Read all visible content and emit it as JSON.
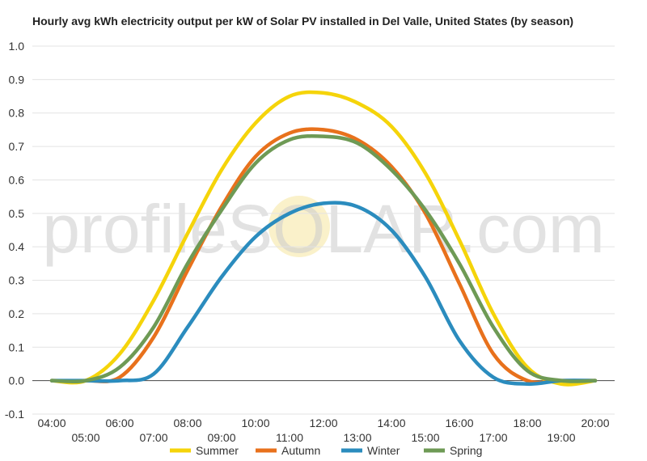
{
  "chart_data": {
    "type": "line",
    "title": "Hourly avg kWh electricity output per kW of Solar PV installed in Del Valle, United States (by season)",
    "xlabel": "",
    "ylabel": "",
    "ylim": [
      -0.1,
      1.0
    ],
    "yticks": [
      "-0.1",
      "0.0",
      "0.1",
      "0.2",
      "0.3",
      "0.4",
      "0.5",
      "0.6",
      "0.7",
      "0.8",
      "0.9",
      "1.0"
    ],
    "categories": [
      "04:00",
      "05:00",
      "06:00",
      "07:00",
      "08:00",
      "09:00",
      "10:00",
      "11:00",
      "12:00",
      "13:00",
      "14:00",
      "15:00",
      "16:00",
      "17:00",
      "18:00",
      "19:00",
      "20:00"
    ],
    "grid": true,
    "legend_position": "bottom",
    "series": [
      {
        "name": "Summer",
        "color": "#F5D40A",
        "values": [
          0.0,
          0.0,
          0.08,
          0.24,
          0.44,
          0.63,
          0.77,
          0.85,
          0.86,
          0.83,
          0.76,
          0.62,
          0.42,
          0.2,
          0.04,
          -0.01,
          0.0
        ]
      },
      {
        "name": "Autumn",
        "color": "#E8711C",
        "values": [
          0.0,
          0.0,
          0.01,
          0.13,
          0.33,
          0.52,
          0.67,
          0.74,
          0.75,
          0.72,
          0.64,
          0.5,
          0.29,
          0.08,
          0.0,
          0.0,
          0.0
        ]
      },
      {
        "name": "Winter",
        "color": "#2B8CBE",
        "values": [
          0.0,
          0.0,
          0.0,
          0.02,
          0.16,
          0.31,
          0.43,
          0.5,
          0.53,
          0.52,
          0.45,
          0.31,
          0.12,
          0.01,
          -0.01,
          0.0,
          0.0
        ]
      },
      {
        "name": "Spring",
        "color": "#6E9A55",
        "values": [
          0.0,
          0.0,
          0.04,
          0.16,
          0.35,
          0.51,
          0.65,
          0.72,
          0.73,
          0.71,
          0.63,
          0.51,
          0.35,
          0.16,
          0.03,
          0.0,
          0.0
        ]
      }
    ]
  },
  "watermark": "profileSOLAR.com"
}
